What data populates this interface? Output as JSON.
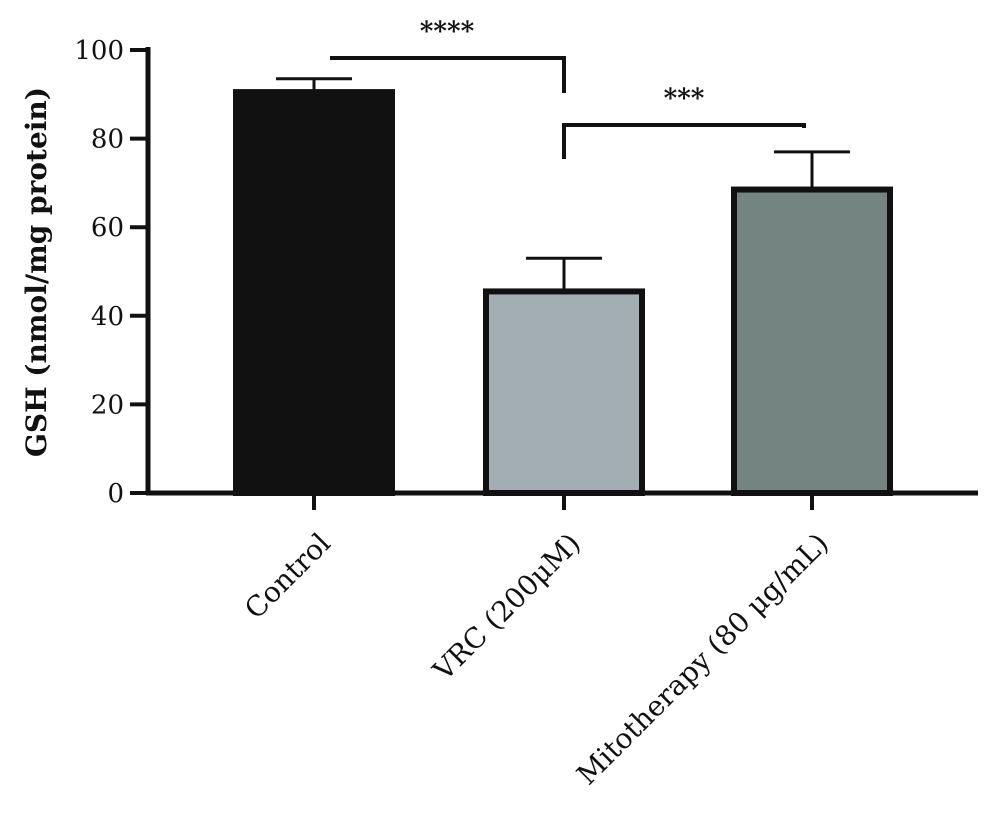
{
  "chart_data": {
    "type": "bar",
    "title": "",
    "xlabel": "",
    "ylabel": "GSH (nmol/mg protein)",
    "ylim": [
      0,
      100
    ],
    "yticks": [
      0,
      20,
      40,
      60,
      80,
      100
    ],
    "categories": [
      "Control",
      "VRC (200μM)",
      "Mitotherapy (80 μg/mL)"
    ],
    "values": [
      90.5,
      45.5,
      68.5
    ],
    "errors": [
      3,
      7.5,
      8.5
    ],
    "bar_colors": [
      "#111111",
      "#a2adb4",
      "#748480"
    ],
    "grid": false,
    "legend": "none",
    "significance": [
      {
        "from": 0,
        "to": 1,
        "label": "****"
      },
      {
        "from": 1,
        "to": 2,
        "label": "***"
      }
    ]
  }
}
